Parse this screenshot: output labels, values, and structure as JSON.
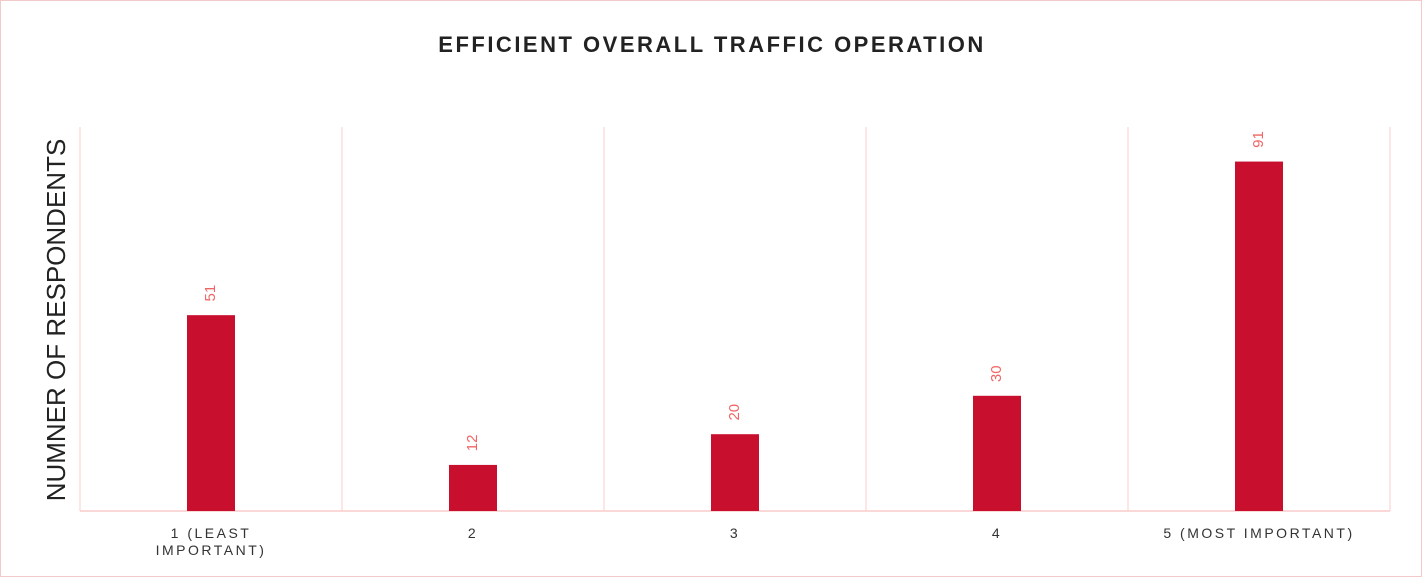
{
  "chart_data": {
    "type": "bar",
    "title": "EFFICIENT OVERALL TRAFFIC OPERATION",
    "y_label": "NUMNER OF RESPONDENTS",
    "categories": [
      "1 (LEAST IMPORTANT)",
      "2",
      "3",
      "4",
      "5 (MOST IMPORTANT)"
    ],
    "values": [
      51,
      12,
      20,
      30,
      91
    ],
    "color": "#c8102e",
    "label_color": "#f06565",
    "ylim": [
      0,
      100
    ]
  }
}
